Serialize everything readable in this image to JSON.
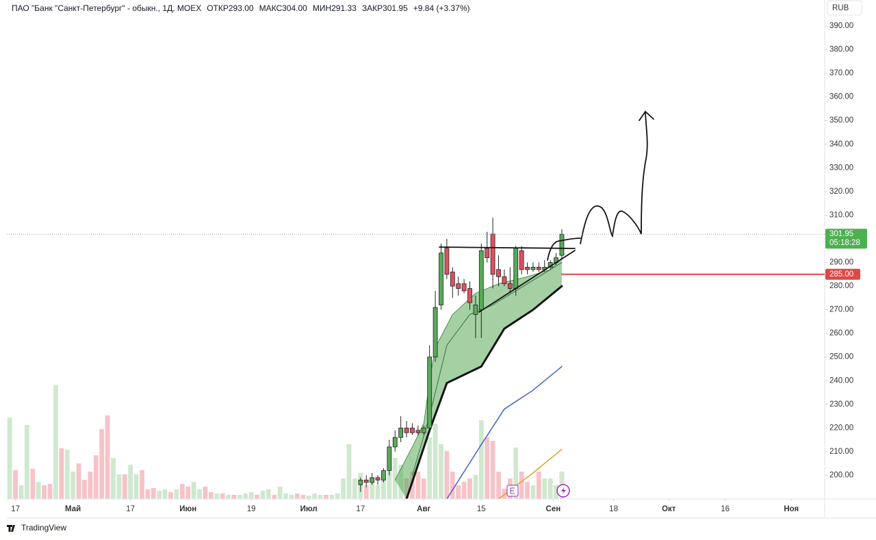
{
  "chart_data": {
    "type": "candlestick",
    "title": "ПАО \"Банк \"Санкт-Петербург\" - обыкн., 1Д, MOEX",
    "legend_items": [
      "ОТКР293.00",
      "МАКС304.00",
      "МИН291.33",
      "ЗАКР301.95",
      "+9.84 (+3.37%)"
    ],
    "currency": "RUB",
    "brand": "TradingView",
    "up_color": "#5aa85a",
    "down_color": "#e0505e",
    "x": [
      61,
      62,
      63,
      64,
      65,
      66,
      67,
      68,
      69,
      70,
      71,
      72,
      73,
      74,
      75,
      76,
      77,
      78,
      79,
      80,
      81,
      82,
      83,
      84,
      85,
      86,
      87,
      88,
      89,
      90,
      91,
      92,
      93,
      94,
      95,
      96
    ],
    "open": [
      196,
      198,
      197,
      199,
      198,
      202,
      212,
      216,
      220,
      220,
      219,
      218,
      220,
      250,
      272,
      296,
      286,
      281,
      281,
      279,
      268,
      270,
      296,
      302,
      287,
      284,
      281,
      279,
      295,
      288,
      287,
      288,
      287,
      288,
      290,
      293
    ],
    "high": [
      199,
      200,
      201,
      200,
      203,
      215,
      219,
      225,
      223,
      222,
      221,
      221,
      255,
      278,
      298,
      300,
      288,
      284,
      283,
      282,
      276,
      298,
      303,
      309,
      293,
      287,
      288,
      297,
      297,
      290,
      290,
      290,
      291,
      291,
      294,
      304
    ],
    "low": [
      193,
      195,
      196,
      196,
      197,
      200,
      210,
      214,
      216,
      217,
      217,
      217,
      218,
      248,
      270,
      283,
      275,
      276,
      277,
      270,
      258,
      258,
      290,
      279,
      280,
      280,
      277,
      276,
      285,
      285,
      286,
      286,
      286,
      287,
      289,
      291.33
    ],
    "close": [
      198,
      197,
      199,
      198,
      202,
      212,
      216,
      220,
      218,
      218,
      218,
      220,
      250,
      271,
      294,
      285,
      280,
      279,
      278,
      273,
      272,
      295,
      292,
      285,
      284,
      281,
      279,
      296,
      287,
      287,
      288,
      287,
      288,
      290,
      292,
      301.95
    ],
    "volume": {
      "values": [
        119,
        42,
        20,
        108,
        44,
        25,
        20,
        22,
        166,
        74,
        72,
        40,
        52,
        28,
        40,
        64,
        102,
        122,
        60,
        36,
        36,
        50,
        36,
        42,
        14,
        16,
        12,
        14,
        10,
        14,
        22,
        18,
        25,
        14,
        18,
        10,
        8,
        8,
        6,
        6,
        6,
        8,
        10,
        6,
        12,
        14,
        6,
        18,
        8,
        6,
        8,
        6,
        5,
        8,
        6,
        6,
        6,
        8,
        30,
        80,
        30,
        38,
        20,
        30,
        20,
        30,
        70,
        60,
        50,
        30,
        40,
        40,
        30,
        90,
        110,
        80,
        70,
        40,
        20,
        25,
        30,
        35,
        115,
        90,
        85,
        40,
        15,
        30,
        75,
        40,
        25,
        20,
        40,
        30,
        30,
        20,
        40
      ],
      "colors": [
        "#cfe8cf",
        "#f6c3c8",
        "#cfe8cf",
        "#cfe8cf",
        "#f6c3c8",
        "#cfe8cf",
        "#f6c3c8",
        "#f6c3c8",
        "#cfe8cf",
        "#f6c3c8",
        "#cfe8cf",
        "#cfe8cf",
        "#f6c3c8",
        "#f6c3c8",
        "#f6c3c8",
        "#f6c3c8",
        "#f6c3c8",
        "#f6c3c8",
        "#cfe8cf",
        "#cfe8cf",
        "#f6c3c8",
        "#cfe8cf",
        "#cfe8cf",
        "#f6c3c8",
        "#f6c3c8",
        "#f6c3c8",
        "#cfe8cf",
        "#cfe8cf",
        "#f6c3c8",
        "#cfe8cf",
        "#f6c3c8",
        "#f6c3c8",
        "#cfe8cf",
        "#cfe8cf",
        "#f6c3c8",
        "#f6c3c8",
        "#cfe8cf",
        "#f6c3c8",
        "#cfe8cf",
        "#f6c3c8",
        "#cfe8cf",
        "#cfe8cf",
        "#cfe8cf",
        "#f6c3c8",
        "#cfe8cf",
        "#cfe8cf",
        "#f6c3c8",
        "#cfe8cf",
        "#cfe8cf",
        "#cfe8cf",
        "#f6c3c8",
        "#f6c3c8",
        "#cfe8cf",
        "#cfe8cf",
        "#cfe8cf",
        "#f6c3c8",
        "#cfe8cf",
        "#cfe8cf",
        "#cfe8cf",
        "#cfe8cf",
        "#cfe8cf",
        "#cfe8cf",
        "#f6c3c8",
        "#cfe8cf",
        "#cfe8cf",
        "#cfe8cf",
        "#cfe8cf",
        "#cfe8cf",
        "#cfe8cf",
        "#f6c3c8",
        "#f6c3c8",
        "#f6c3c8",
        "#f6c3c8",
        "#cfe8cf",
        "#cfe8cf",
        "#cfe8cf",
        "#f6c3c8",
        "#f6c3c8",
        "#f6c3c8",
        "#f6c3c8",
        "#f6c3c8",
        "#cfe8cf",
        "#cfe8cf",
        "#f6c3c8",
        "#f6c3c8",
        "#f6c3c8",
        "#f6c3c8",
        "#f6c3c8",
        "#cfe8cf",
        "#f6c3c8",
        "#f6c3c8",
        "#cfe8cf",
        "#f6c3c8",
        "#cfe8cf",
        "#cfe8cf",
        "#cfe8cf",
        "#cfe8cf"
      ]
    },
    "y2lim": [
      0,
      180
    ],
    "series": [
      {
        "color": "#2e7d32",
        "width": 0.8,
        "x": [
          67,
          70,
          72,
          73,
          74,
          77,
          81,
          85,
          90,
          94,
          96
        ],
        "values": [
          198,
          212,
          222,
          240,
          254,
          268,
          277,
          281,
          284,
          287,
          292
        ]
      },
      {
        "color": "#111111",
        "width": 3,
        "x": [
          69,
          73,
          76,
          82,
          86,
          91,
          96
        ],
        "values": [
          190,
          219,
          239,
          246,
          262,
          270,
          280
        ]
      },
      {
        "color": "#1b5e20",
        "width": 0.8,
        "x": [
          70,
          73,
          76,
          80,
          84,
          88,
          92,
          96
        ],
        "values": [
          200,
          225,
          255,
          268,
          272,
          278,
          284,
          290
        ]
      },
      {
        "color": "#3f5fd0",
        "width": 1.5,
        "x": [
          76,
          82,
          86,
          91,
          96
        ],
        "values": [
          190,
          213,
          228,
          236,
          246
        ]
      },
      {
        "color": "#e0a030",
        "width": 1.5,
        "x": [
          85,
          91,
          96
        ],
        "values": [
          190,
          201,
          211
        ]
      }
    ],
    "fill_between": [
      0,
      1
    ],
    "fill_color": "rgba(90,170,90,0.55)",
    "levels": [
      {
        "value": 285,
        "label": "285.00",
        "color": "#e04848"
      }
    ],
    "last_price": {
      "value": 301.95,
      "label": "301.95",
      "timer": "05:18:28",
      "color": "#4caf50"
    },
    "xlim": [
      -0.5,
      141.7
    ],
    "xticks": [
      {
        "value": 1,
        "label": "17"
      },
      {
        "value": 11,
        "label": "Май"
      },
      {
        "value": 21,
        "label": "17"
      },
      {
        "value": 31,
        "label": "Июн"
      },
      {
        "value": 42,
        "label": "19"
      },
      {
        "value": 52,
        "label": "Июл"
      },
      {
        "value": 61,
        "label": "17"
      },
      {
        "value": 72,
        "label": "Авг"
      },
      {
        "value": 82,
        "label": "15"
      },
      {
        "value": 94.5,
        "label": "Сен"
      },
      {
        "value": 105,
        "label": "18"
      },
      {
        "value": 114.6,
        "label": "Окт"
      },
      {
        "value": 124.4,
        "label": "16"
      },
      {
        "value": 135.9,
        "label": "Ноя"
      }
    ],
    "ylim": [
      190,
      401
    ],
    "yticks": [
      {
        "value": 200,
        "label": "200.00"
      },
      {
        "value": 210,
        "label": "210.00"
      },
      {
        "value": 220,
        "label": "220.00"
      },
      {
        "value": 230,
        "label": "230.00"
      },
      {
        "value": 240,
        "label": "240.00"
      },
      {
        "value": 250,
        "label": "250.00"
      },
      {
        "value": 260,
        "label": "260.00"
      },
      {
        "value": 270,
        "label": "270.00"
      },
      {
        "value": 280,
        "label": "280.00"
      },
      {
        "value": 290,
        "label": "290.00"
      },
      {
        "value": 300,
        "label": "300.00"
      },
      {
        "value": 310,
        "label": "310.00"
      },
      {
        "value": 320,
        "label": "320.00"
      },
      {
        "value": 330,
        "label": "330.00"
      },
      {
        "value": 340,
        "label": "340.00"
      },
      {
        "value": 350,
        "label": "350.00"
      },
      {
        "value": 360,
        "label": "360.00"
      },
      {
        "value": 370,
        "label": "370.00"
      },
      {
        "value": 380,
        "label": "380.00"
      },
      {
        "value": 390,
        "label": "390.00"
      }
    ]
  }
}
